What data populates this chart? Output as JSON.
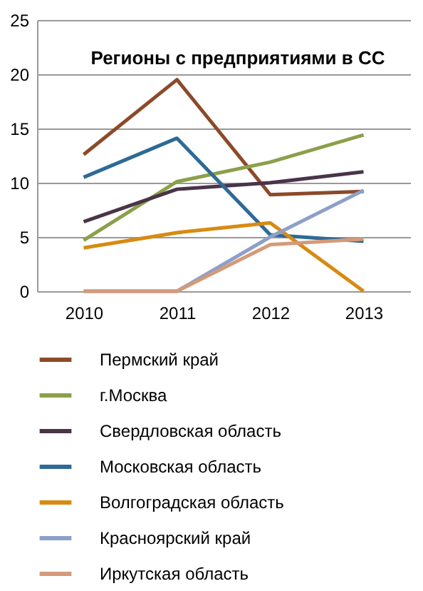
{
  "chart_data": {
    "type": "line",
    "title": "Регионы с предприятиями в СС",
    "categories": [
      "2010",
      "2011",
      "2012",
      "2013"
    ],
    "series": [
      {
        "name": "Пермский край",
        "color": "#8c4a2a",
        "values": [
          12.6,
          19.5,
          8.9,
          9.2
        ]
      },
      {
        "name": "г.Москва",
        "color": "#8aa04a",
        "values": [
          4.7,
          10.1,
          11.9,
          14.4
        ]
      },
      {
        "name": "Свердловская область",
        "color": "#4a3448",
        "values": [
          6.4,
          9.4,
          10.0,
          11.0
        ]
      },
      {
        "name": "Московская область",
        "color": "#2f6a96",
        "values": [
          10.5,
          14.1,
          5.2,
          4.6
        ]
      },
      {
        "name": "Волгоградская область",
        "color": "#d88a12",
        "values": [
          4.0,
          5.4,
          6.3,
          0
        ]
      },
      {
        "name": "Красноярский край",
        "color": "#8e9fc8",
        "values": [
          0,
          0,
          5.0,
          9.3
        ]
      },
      {
        "name": "Иркутская область",
        "color": "#d49a7a",
        "values": [
          0,
          0,
          4.3,
          4.8
        ]
      }
    ],
    "ylim": [
      0,
      25
    ],
    "yticks": [
      0,
      5,
      10,
      15,
      20,
      25
    ],
    "grid": "y",
    "legend": "bottom"
  }
}
